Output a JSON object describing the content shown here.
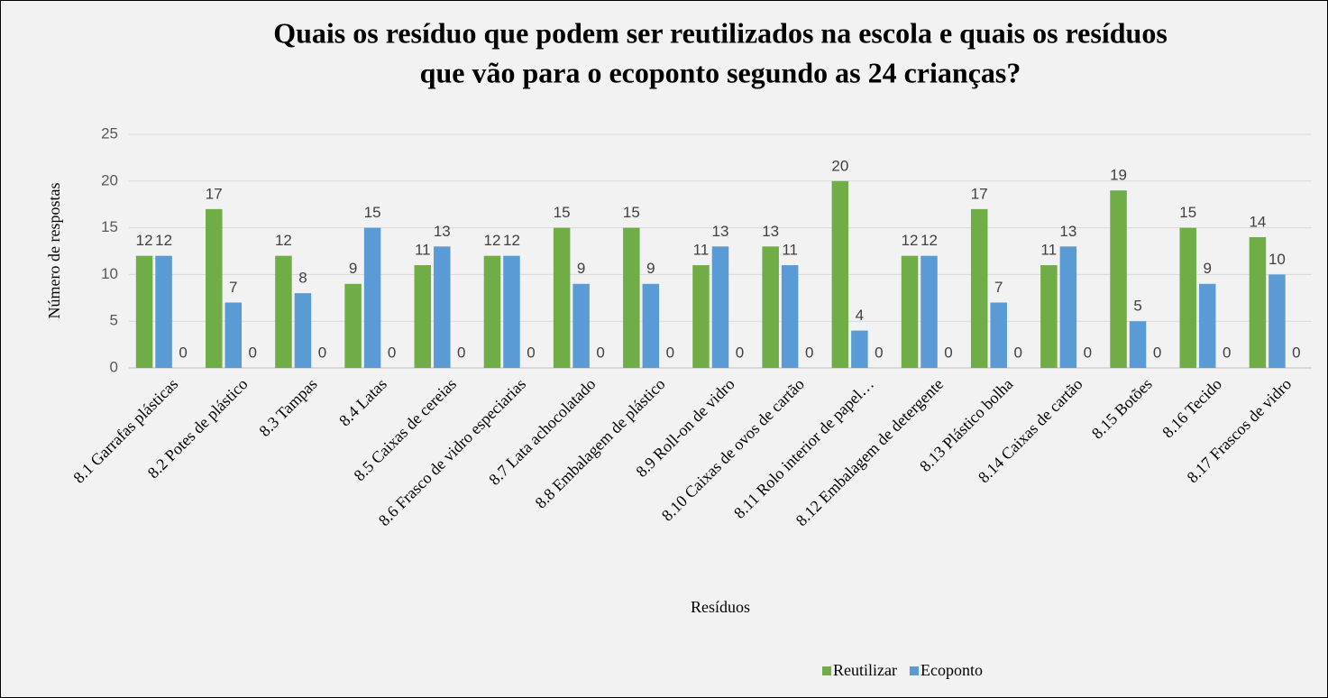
{
  "chart_data": {
    "type": "bar",
    "title": [
      "Quais os resíduo que podem ser reutilizados na escola e quais os resíduos",
      "que vão para o ecoponto segundo as 24 crianças?"
    ],
    "x_label": "Resíduos",
    "y_label": "Número de respostas",
    "categories": [
      "8.1 Garrafas plásticas",
      "8.2 Potes de plástico",
      "8.3 Tampas",
      "8.4 Latas",
      "8.5 Caixas de cereias",
      "8.6 Frasco de vidro especiarias",
      "8.7 Lata achocolatado",
      "8.8 Embalagem de plástico",
      "8.9 Roll-on de vidro",
      "8.10 Caixas de ovos de cartão",
      "8.11 Rolo interior de papel…",
      "8.12 Embalagem de detergente",
      "8.13 Plástico bolha",
      "8.14 Caixas de cartão",
      "8.15 Botões",
      "8.16 Tecido",
      "8.17 Frascos de vidro"
    ],
    "series": [
      {
        "name": "Reutilizar",
        "color": "#70ad47",
        "values": [
          12,
          17,
          12,
          9,
          11,
          12,
          15,
          15,
          11,
          13,
          20,
          12,
          17,
          11,
          19,
          15,
          14
        ]
      },
      {
        "name": "Ecoponto",
        "color": "#5b9bd5",
        "values": [
          12,
          7,
          8,
          15,
          13,
          12,
          9,
          9,
          13,
          11,
          4,
          12,
          7,
          13,
          5,
          9,
          10
        ]
      },
      {
        "values": [
          0,
          0,
          0,
          0,
          0,
          0,
          0,
          0,
          0,
          0,
          0,
          0,
          0,
          0,
          0,
          0,
          0
        ]
      }
    ],
    "ylim": [
      0,
      25
    ],
    "yticks": [
      0,
      5,
      10,
      15,
      20,
      25
    ],
    "grid": true,
    "legend": "bottom"
  }
}
